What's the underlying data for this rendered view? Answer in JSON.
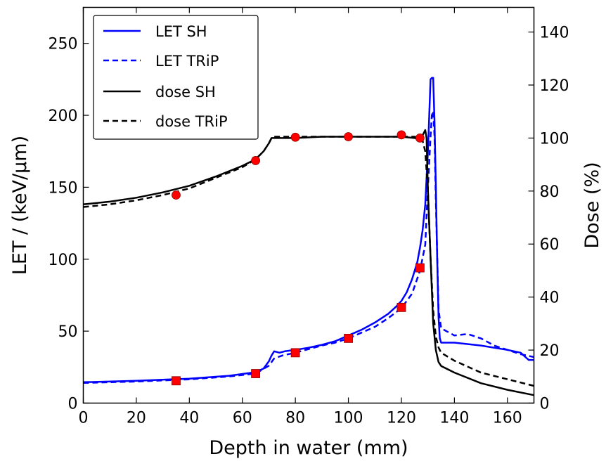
{
  "chart_data": {
    "type": "line",
    "xlabel": "Depth in water (mm)",
    "ylabel_left": "LET / (keV/μm)",
    "ylabel_right": "Dose (%)",
    "xlim": [
      0,
      170
    ],
    "ylim_left": [
      0,
      275
    ],
    "ylim_right": [
      0,
      149.3
    ],
    "x_ticks": [
      0,
      20,
      40,
      60,
      80,
      100,
      120,
      140,
      160
    ],
    "y_ticks_left": [
      0,
      50,
      100,
      150,
      200,
      250
    ],
    "y_ticks_right": [
      0,
      20,
      40,
      60,
      80,
      100,
      120,
      140
    ],
    "grid": false,
    "legend_position": "top-left",
    "series": [
      {
        "name": "LET SH",
        "axis": "left",
        "color": "#0000ff",
        "dash": "solid",
        "x": [
          0,
          20,
          40,
          55,
          65,
          68,
          70,
          71,
          72,
          74,
          76,
          78,
          80,
          85,
          90,
          95,
          100,
          105,
          110,
          115,
          118,
          120,
          122,
          124,
          126,
          127,
          128,
          129,
          130,
          130.5,
          131,
          131.5,
          132,
          132.5,
          133,
          133.5,
          134,
          134.5,
          135,
          140,
          150,
          160,
          165,
          168,
          170
        ],
        "y": [
          14.5,
          15.5,
          17,
          19,
          21.5,
          24,
          29,
          33,
          36,
          35,
          36,
          36.5,
          37,
          38.5,
          40.5,
          43,
          47,
          51,
          56,
          62,
          67,
          71,
          77,
          86,
          98,
          108,
          120,
          138,
          175,
          200,
          225,
          226,
          226,
          195,
          150,
          100,
          60,
          45,
          42,
          42,
          40,
          37,
          35,
          30,
          30
        ]
      },
      {
        "name": "LET TRiP",
        "axis": "left",
        "color": "#0000ff",
        "dash": "dashed",
        "x": [
          0,
          20,
          40,
          55,
          65,
          70,
          72,
          75,
          80,
          85,
          90,
          95,
          100,
          105,
          110,
          115,
          120,
          124,
          127,
          129,
          130,
          131,
          131.5,
          132,
          132.5,
          133,
          134,
          135,
          138,
          140,
          145,
          150,
          155,
          160,
          165,
          170
        ],
        "y": [
          14,
          15,
          16.5,
          18.5,
          20.5,
          26,
          31,
          33,
          35,
          37.5,
          40,
          42,
          45,
          49,
          53,
          59,
          66,
          76,
          92,
          110,
          150,
          185,
          200,
          203,
          185,
          140,
          65,
          52,
          49,
          47,
          48,
          45,
          40,
          37,
          34,
          32
        ]
      },
      {
        "name": "dose SH",
        "axis": "right",
        "color": "#000000",
        "dash": "solid",
        "x": [
          0,
          10,
          20,
          30,
          40,
          50,
          60,
          65,
          68,
          70,
          71,
          72,
          80,
          90,
          100,
          110,
          120,
          125,
          127,
          128,
          129,
          129.5,
          130,
          131,
          132,
          133,
          134,
          135,
          140,
          150,
          160,
          170
        ],
        "y": [
          75,
          76,
          77.5,
          79.5,
          82,
          85.5,
          89.5,
          92,
          95,
          98,
          100,
          100,
          100,
          100.5,
          100.5,
          100.5,
          100.5,
          100,
          99.5,
          101,
          103,
          100,
          80,
          55,
          30,
          20,
          15.5,
          14,
          11.5,
          7.5,
          5,
          3
        ]
      },
      {
        "name": "dose TRiP",
        "axis": "right",
        "color": "#000000",
        "dash": "dashed",
        "x": [
          0,
          10,
          20,
          30,
          40,
          50,
          60,
          65,
          68,
          70,
          71,
          72,
          80,
          90,
          100,
          110,
          120,
          125,
          127,
          128,
          129,
          130,
          131,
          132,
          133,
          134,
          135,
          140,
          150,
          160,
          170
        ],
        "y": [
          74,
          75,
          76.5,
          78.5,
          81,
          85,
          89,
          92,
          95,
          98,
          100,
          100.5,
          100.5,
          100.5,
          100.5,
          100.5,
          100.5,
          100.5,
          100,
          99,
          95,
          80,
          55,
          35,
          25,
          21,
          19,
          16,
          11.5,
          9,
          6.5
        ]
      }
    ],
    "markers": [
      {
        "axis": "right",
        "shape": "circle",
        "color": "#ff0000",
        "x": [
          35,
          65,
          80,
          100,
          120,
          127
        ],
        "y": [
          78.5,
          91.5,
          100.3,
          100.5,
          101.2,
          100
        ]
      },
      {
        "axis": "left",
        "shape": "square",
        "color": "#ff0000",
        "x": [
          35,
          65,
          80,
          100,
          120,
          127
        ],
        "y": [
          15.5,
          20.5,
          35,
          45,
          66.5,
          94
        ]
      }
    ]
  }
}
